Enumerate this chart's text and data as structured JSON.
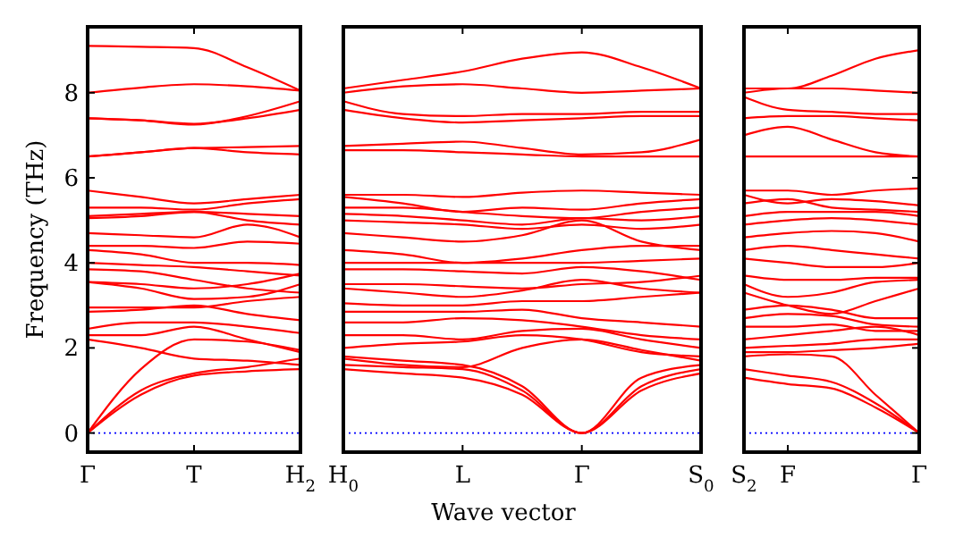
{
  "chart_data": [
    {
      "type": "line",
      "ylabel": "Frequency (THz)",
      "categories": [
        "Γ",
        null,
        "T",
        null,
        "H$_{2}$"
      ],
      "ylim": [
        -0.45,
        9.55
      ],
      "yticks": [
        0,
        2,
        4,
        6,
        8
      ],
      "grid": false,
      "marker": "none",
      "line_style": "solid",
      "ref_lines": [
        {
          "axis": "y",
          "value": 0,
          "color": "#0000ff",
          "line_style": "dotted"
        }
      ],
      "series": [
        {
          "color": "#ff0000",
          "values": [
            9.1,
            9.08,
            9.05,
            8.6,
            8.05
          ]
        },
        {
          "color": "#ff0000",
          "values": [
            8.0,
            8.12,
            8.2,
            8.15,
            8.05
          ]
        },
        {
          "color": "#ff0000",
          "values": [
            7.4,
            7.35,
            7.25,
            7.45,
            7.8
          ]
        },
        {
          "color": "#ff0000",
          "values": [
            7.4,
            7.35,
            7.27,
            7.4,
            7.6
          ]
        },
        {
          "color": "#ff0000",
          "values": [
            6.5,
            6.6,
            6.7,
            6.72,
            6.75
          ]
        },
        {
          "color": "#ff0000",
          "values": [
            6.5,
            6.6,
            6.7,
            6.6,
            6.55
          ]
        },
        {
          "color": "#ff0000",
          "values": [
            5.7,
            5.55,
            5.4,
            5.5,
            5.6
          ]
        },
        {
          "color": "#ff0000",
          "values": [
            5.3,
            5.3,
            5.25,
            5.4,
            5.5
          ]
        },
        {
          "color": "#ff0000",
          "values": [
            5.05,
            5.1,
            5.2,
            5.15,
            5.1
          ]
        },
        {
          "color": "#ff0000",
          "values": [
            5.1,
            5.15,
            5.2,
            5.0,
            4.9
          ]
        },
        {
          "color": "#ff0000",
          "values": [
            4.7,
            4.65,
            4.6,
            4.9,
            4.6
          ]
        },
        {
          "color": "#ff0000",
          "values": [
            4.4,
            4.4,
            4.35,
            4.5,
            4.45
          ]
        },
        {
          "color": "#ff0000",
          "values": [
            4.3,
            4.2,
            4.0,
            4.0,
            3.95
          ]
        },
        {
          "color": "#ff0000",
          "values": [
            4.0,
            3.95,
            3.9,
            3.8,
            3.7
          ]
        },
        {
          "color": "#ff0000",
          "values": [
            3.85,
            3.8,
            3.6,
            3.4,
            3.3
          ]
        },
        {
          "color": "#ff0000",
          "values": [
            3.55,
            3.5,
            3.4,
            3.5,
            3.75
          ]
        },
        {
          "color": "#ff0000",
          "values": [
            3.55,
            3.4,
            3.15,
            3.2,
            3.5
          ]
        },
        {
          "color": "#ff0000",
          "values": [
            2.95,
            2.95,
            2.95,
            3.1,
            3.2
          ]
        },
        {
          "color": "#ff0000",
          "values": [
            2.85,
            2.9,
            3.0,
            2.8,
            2.65
          ]
        },
        {
          "color": "#ff0000",
          "values": [
            2.45,
            2.6,
            2.6,
            2.5,
            2.35
          ]
        },
        {
          "color": "#ff0000",
          "values": [
            2.3,
            2.3,
            2.5,
            2.2,
            1.9
          ]
        },
        {
          "color": "#ff0000",
          "values": [
            2.2,
            2.0,
            1.75,
            1.7,
            1.6
          ]
        },
        {
          "color": "#ff0000",
          "values": [
            0,
            1.0,
            1.4,
            1.55,
            1.75
          ]
        },
        {
          "color": "#ff0000",
          "values": [
            0,
            0.9,
            1.35,
            1.45,
            1.5
          ]
        },
        {
          "color": "#ff0000",
          "values": [
            0,
            1.5,
            2.2,
            2.15,
            1.95
          ]
        }
      ]
    },
    {
      "type": "line",
      "xlabel": "Wave vector",
      "categories": [
        "H$_{0}$",
        null,
        "L",
        null,
        "Γ",
        null,
        "S$_{0}$"
      ],
      "ylim": [
        -0.45,
        9.55
      ],
      "yticks": [
        0,
        2,
        4,
        6,
        8
      ],
      "tick_labels": "x",
      "grid": false,
      "marker": "none",
      "line_style": "solid",
      "ref_lines": [
        {
          "axis": "y",
          "value": 0,
          "color": "#0000ff",
          "line_style": "dotted"
        }
      ],
      "series": [
        {
          "color": "#ff0000",
          "values": [
            8.1,
            8.3,
            8.5,
            8.8,
            8.95,
            8.6,
            8.1
          ]
        },
        {
          "color": "#ff0000",
          "values": [
            8.0,
            8.15,
            8.2,
            8.1,
            8.0,
            8.05,
            8.1
          ]
        },
        {
          "color": "#ff0000",
          "values": [
            7.8,
            7.5,
            7.45,
            7.5,
            7.5,
            7.55,
            7.55
          ]
        },
        {
          "color": "#ff0000",
          "values": [
            7.6,
            7.4,
            7.3,
            7.35,
            7.4,
            7.45,
            7.45
          ]
        },
        {
          "color": "#ff0000",
          "values": [
            6.75,
            6.8,
            6.85,
            6.7,
            6.55,
            6.6,
            6.9
          ]
        },
        {
          "color": "#ff0000",
          "values": [
            6.65,
            6.65,
            6.6,
            6.55,
            6.5,
            6.5,
            6.5
          ]
        },
        {
          "color": "#ff0000",
          "values": [
            5.6,
            5.6,
            5.55,
            5.65,
            5.7,
            5.65,
            5.6
          ]
        },
        {
          "color": "#ff0000",
          "values": [
            5.55,
            5.4,
            5.2,
            5.3,
            5.25,
            5.4,
            5.5
          ]
        },
        {
          "color": "#ff0000",
          "values": [
            5.3,
            5.3,
            5.2,
            5.1,
            5.05,
            5.2,
            5.3
          ]
        },
        {
          "color": "#ff0000",
          "values": [
            5.15,
            5.1,
            5.0,
            4.9,
            5.05,
            5.0,
            5.1
          ]
        },
        {
          "color": "#ff0000",
          "values": [
            5.0,
            4.95,
            4.9,
            4.8,
            4.9,
            4.8,
            4.9
          ]
        },
        {
          "color": "#ff0000",
          "values": [
            4.7,
            4.6,
            4.5,
            4.65,
            5.0,
            4.5,
            4.3
          ]
        },
        {
          "color": "#ff0000",
          "values": [
            4.3,
            4.2,
            4.0,
            4.1,
            4.3,
            4.4,
            4.4
          ]
        },
        {
          "color": "#ff0000",
          "values": [
            4.0,
            4.0,
            4.0,
            4.0,
            4.0,
            4.05,
            4.1
          ]
        },
        {
          "color": "#ff0000",
          "values": [
            3.85,
            3.85,
            3.8,
            3.75,
            3.9,
            3.8,
            3.6
          ]
        },
        {
          "color": "#ff0000",
          "values": [
            3.5,
            3.5,
            3.45,
            3.4,
            3.5,
            3.55,
            3.7
          ]
        },
        {
          "color": "#ff0000",
          "values": [
            3.4,
            3.3,
            3.2,
            3.35,
            3.6,
            3.4,
            3.3
          ]
        },
        {
          "color": "#ff0000",
          "values": [
            3.05,
            3.0,
            3.0,
            3.1,
            3.1,
            3.2,
            3.3
          ]
        },
        {
          "color": "#ff0000",
          "values": [
            2.85,
            2.85,
            2.85,
            2.9,
            2.7,
            2.6,
            2.5
          ]
        },
        {
          "color": "#ff0000",
          "values": [
            2.6,
            2.6,
            2.7,
            2.65,
            2.5,
            2.3,
            2.2
          ]
        },
        {
          "color": "#ff0000",
          "values": [
            2.3,
            2.3,
            2.2,
            2.4,
            2.45,
            2.2,
            2.0
          ]
        },
        {
          "color": "#ff0000",
          "values": [
            2.0,
            2.1,
            2.15,
            2.3,
            2.2,
            1.9,
            1.8
          ]
        },
        {
          "color": "#ff0000",
          "values": [
            1.75,
            1.6,
            1.55,
            2.0,
            2.2,
            1.95,
            1.7
          ]
        },
        {
          "color": "#ff0000",
          "values": [
            1.8,
            1.7,
            1.6,
            1.1,
            0,
            1.3,
            1.6
          ]
        },
        {
          "color": "#ff0000",
          "values": [
            1.6,
            1.55,
            1.5,
            1.0,
            0,
            1.1,
            1.5
          ]
        },
        {
          "color": "#ff0000",
          "values": [
            1.5,
            1.4,
            1.3,
            0.9,
            0,
            1.0,
            1.4
          ]
        }
      ]
    },
    {
      "type": "line",
      "categories": [
        "S$_{2}$",
        "F",
        null,
        null,
        "Γ"
      ],
      "ylim": [
        -0.45,
        9.55
      ],
      "yticks": [
        0,
        2,
        4,
        6,
        8
      ],
      "tick_labels": "x",
      "grid": false,
      "marker": "none",
      "line_style": "solid",
      "ref_lines": [
        {
          "axis": "y",
          "value": 0,
          "color": "#0000ff",
          "line_style": "dotted"
        }
      ],
      "series": [
        {
          "color": "#ff0000",
          "values": [
            8.1,
            8.1,
            8.4,
            8.8,
            9.0
          ]
        },
        {
          "color": "#ff0000",
          "values": [
            8.0,
            8.1,
            8.1,
            8.05,
            8.0
          ]
        },
        {
          "color": "#ff0000",
          "values": [
            7.9,
            7.6,
            7.55,
            7.5,
            7.5
          ]
        },
        {
          "color": "#ff0000",
          "values": [
            7.4,
            7.45,
            7.45,
            7.4,
            7.35
          ]
        },
        {
          "color": "#ff0000",
          "values": [
            7.0,
            7.2,
            6.9,
            6.6,
            6.5
          ]
        },
        {
          "color": "#ff0000",
          "values": [
            6.5,
            6.5,
            6.5,
            6.5,
            6.5
          ]
        },
        {
          "color": "#ff0000",
          "values": [
            5.7,
            5.7,
            5.6,
            5.7,
            5.75
          ]
        },
        {
          "color": "#ff0000",
          "values": [
            5.6,
            5.4,
            5.5,
            5.45,
            5.35
          ]
        },
        {
          "color": "#ff0000",
          "values": [
            5.4,
            5.5,
            5.3,
            5.25,
            5.2
          ]
        },
        {
          "color": "#ff0000",
          "values": [
            5.1,
            5.2,
            5.2,
            5.2,
            5.1
          ]
        },
        {
          "color": "#ff0000",
          "values": [
            4.9,
            5.0,
            5.05,
            5.0,
            4.9
          ]
        },
        {
          "color": "#ff0000",
          "values": [
            4.6,
            4.7,
            4.75,
            4.7,
            4.5
          ]
        },
        {
          "color": "#ff0000",
          "values": [
            4.3,
            4.4,
            4.3,
            4.2,
            4.1
          ]
        },
        {
          "color": "#ff0000",
          "values": [
            4.1,
            4.0,
            3.9,
            3.9,
            4.0
          ]
        },
        {
          "color": "#ff0000",
          "values": [
            3.7,
            3.6,
            3.6,
            3.65,
            3.65
          ]
        },
        {
          "color": "#ff0000",
          "values": [
            3.5,
            3.2,
            3.3,
            3.55,
            3.6
          ]
        },
        {
          "color": "#ff0000",
          "values": [
            3.3,
            3.0,
            2.8,
            3.1,
            3.4
          ]
        },
        {
          "color": "#ff0000",
          "values": [
            2.9,
            3.0,
            2.9,
            2.7,
            2.7
          ]
        },
        {
          "color": "#ff0000",
          "values": [
            2.7,
            2.8,
            2.75,
            2.55,
            2.5
          ]
        },
        {
          "color": "#ff0000",
          "values": [
            2.5,
            2.5,
            2.55,
            2.4,
            2.4
          ]
        },
        {
          "color": "#ff0000",
          "values": [
            2.2,
            2.3,
            2.4,
            2.5,
            2.3
          ]
        },
        {
          "color": "#ff0000",
          "values": [
            2.0,
            2.05,
            2.1,
            2.2,
            2.2
          ]
        },
        {
          "color": "#ff0000",
          "values": [
            1.9,
            1.9,
            1.95,
            2.0,
            2.1
          ]
        },
        {
          "color": "#ff0000",
          "values": [
            1.8,
            1.85,
            1.8,
            0.9,
            0
          ]
        },
        {
          "color": "#ff0000",
          "values": [
            1.5,
            1.35,
            1.2,
            0.7,
            0
          ]
        },
        {
          "color": "#ff0000",
          "values": [
            1.3,
            1.15,
            1.05,
            0.6,
            0
          ]
        }
      ]
    }
  ]
}
